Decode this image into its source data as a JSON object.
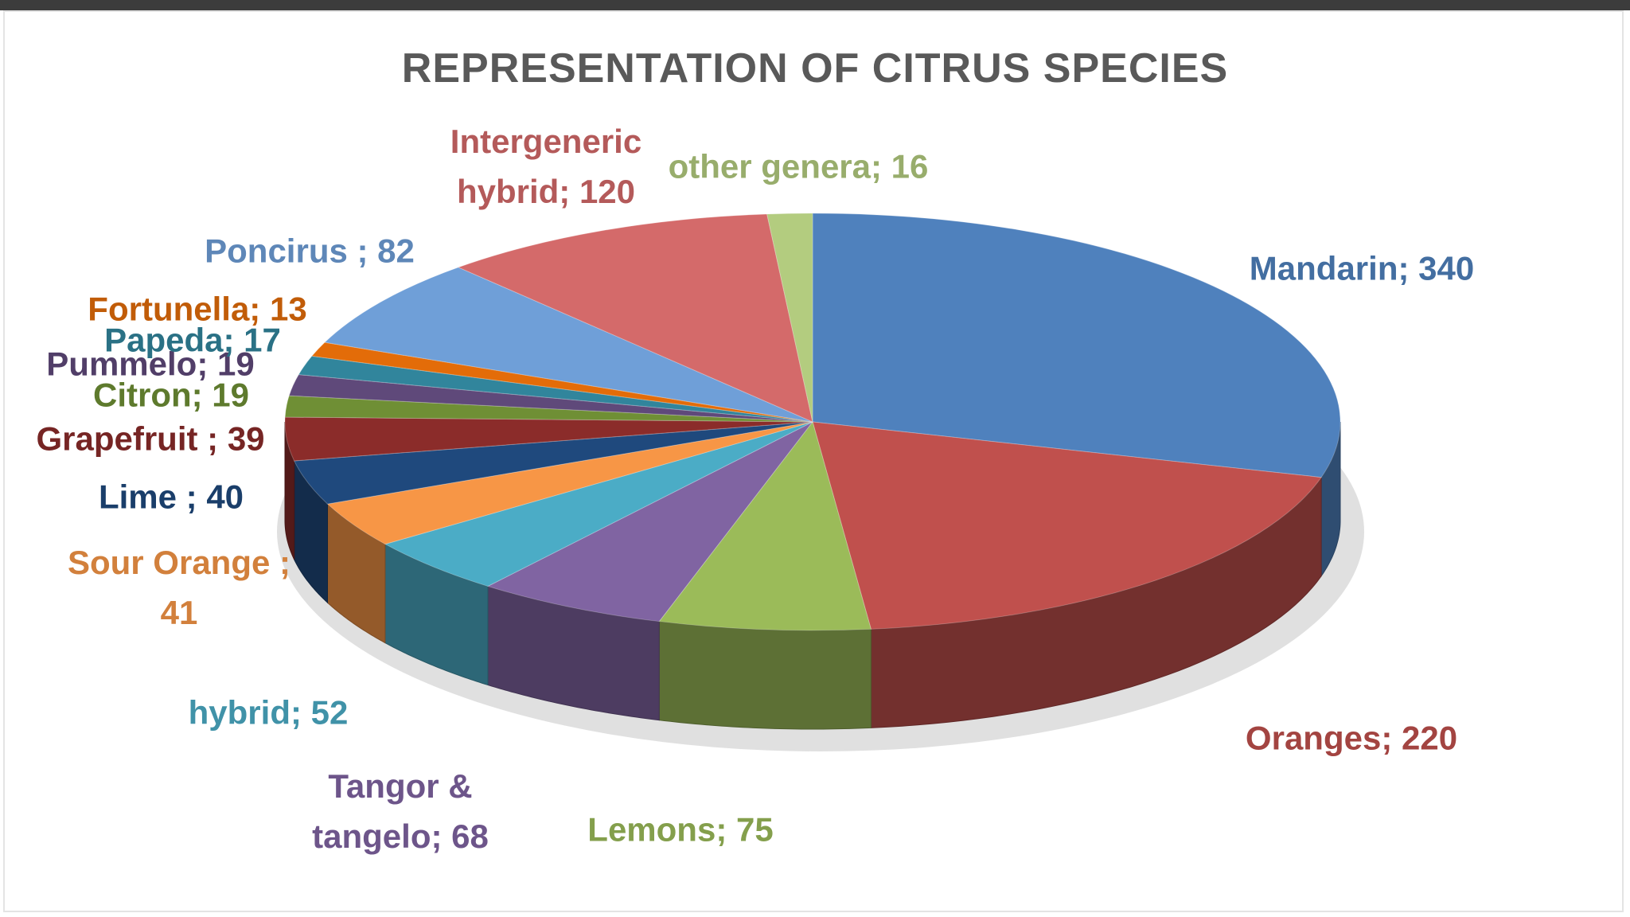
{
  "chart_data": {
    "type": "pie3d",
    "title": "REPRESENTATION OF CITRUS SPECIES",
    "values": [
      340,
      220,
      75,
      68,
      52,
      41,
      40,
      39,
      19,
      19,
      17,
      13,
      82,
      120,
      16
    ],
    "value_labels": [
      "Mandarin; 340",
      "Oranges; 220",
      "Lemons; 75",
      "Tangor & tangelo; 68",
      "hybrid; 52",
      "Sour Orange ; 41",
      "Lime ; 40",
      "Grapefruit ; 39",
      "Citron; 19",
      "Pummelo; 19",
      "Papeda; 17",
      "Fortunella; 13",
      "Poncirus ; 82",
      "Intergeneric hybrid; 120",
      "other genera; 16"
    ],
    "colors": [
      "#4f81bd",
      "#c0504d",
      "#9bbb59",
      "#8064a2",
      "#4bacc6",
      "#f79646",
      "#1f497d",
      "#8b2c2a",
      "#6f8f35",
      "#5f497a",
      "#31859c",
      "#e36c09",
      "#6f9fd8",
      "#d46a6a",
      "#b3cc7f"
    ]
  }
}
